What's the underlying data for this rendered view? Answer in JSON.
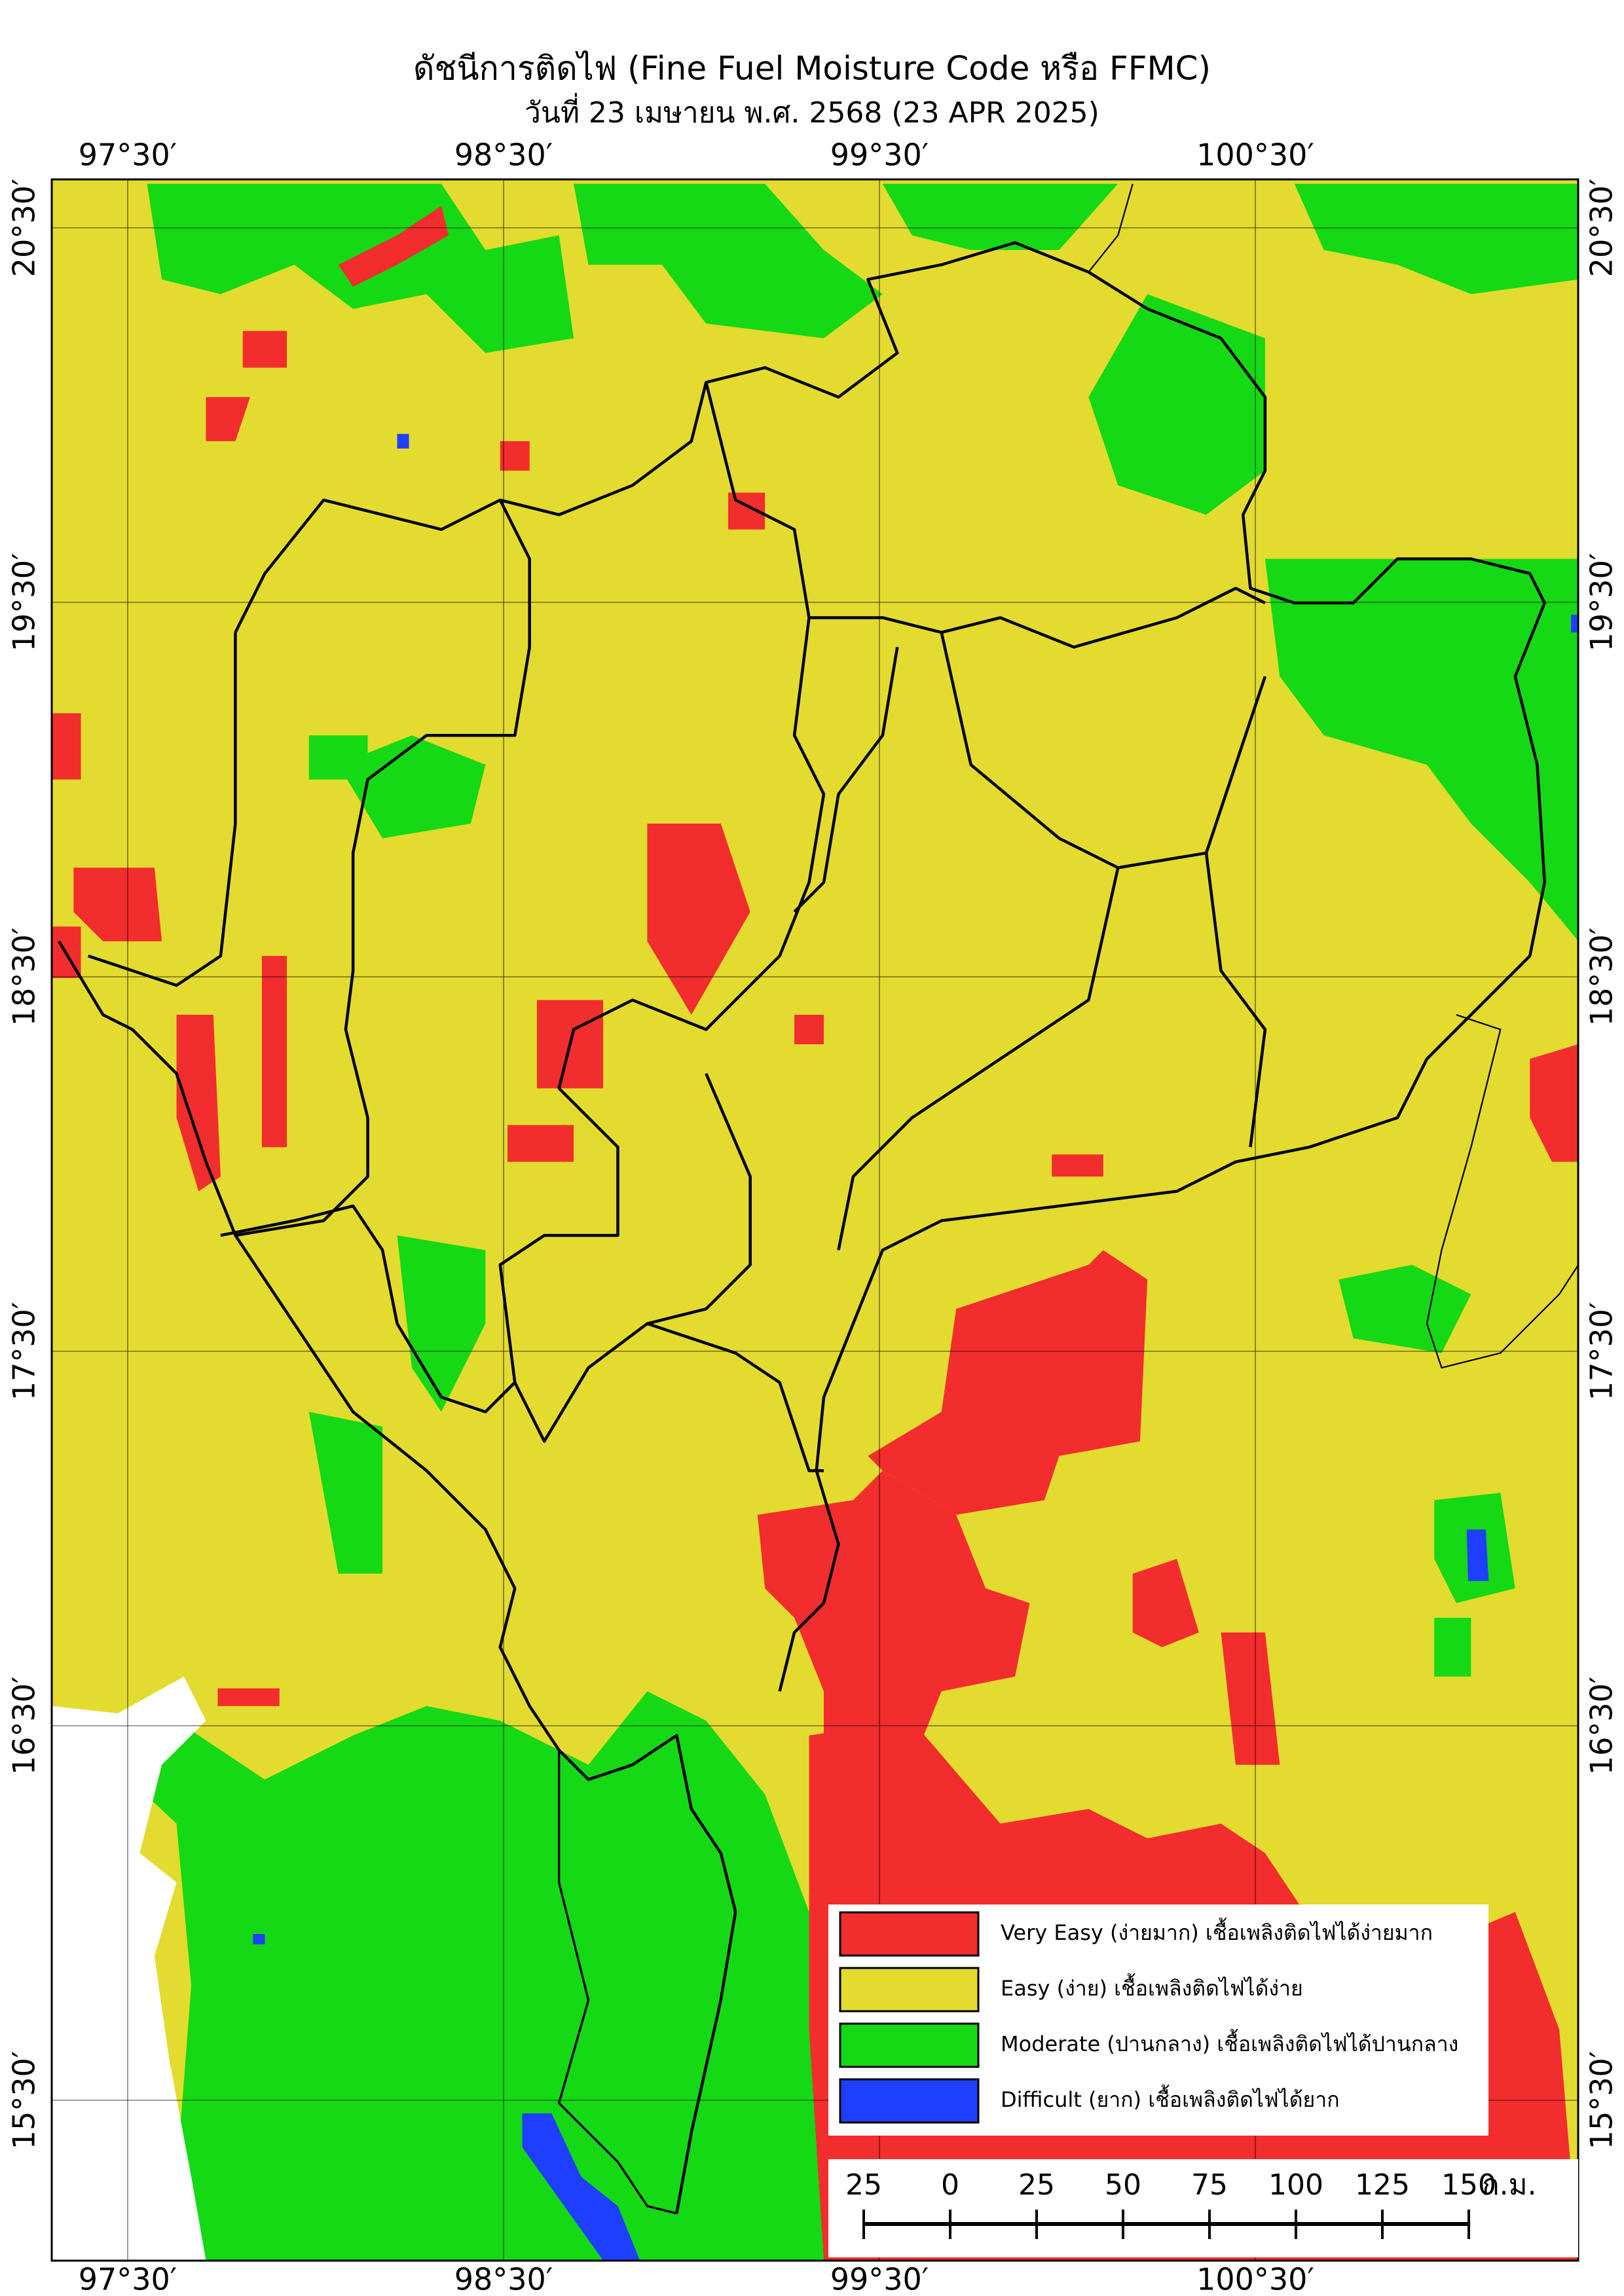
{
  "title": "ดัชนีการติดไฟ (Fine Fuel Moisture Code หรือ FFMC)",
  "subtitle": "วันที่ 23 เมษายน พ.ศ. 2568 (23 APR 2025)",
  "longitude_labels": [
    "97°30′",
    "98°30′",
    "99°30′",
    "100°30′"
  ],
  "latitude_labels": [
    "20°30′",
    "19°30′",
    "18°30′",
    "17°30′",
    "16°30′",
    "15°30′"
  ],
  "legend": [
    {
      "label": "Very Easy (ง่ายมาก) เชื้อเพลิงติดไฟได้ง่ายมาก",
      "color": "#f22d2d"
    },
    {
      "label": "Easy (ง่าย) เชื้อเพลิงติดไฟได้ง่าย",
      "color": "#e3db2f"
    },
    {
      "label": "Moderate (ปานกลาง) เชื้อเพลิงติดไฟได้ปานกลาง",
      "color": "#14d914"
    },
    {
      "label": "Difficult (ยาก) เชื้อเพลิงติดไฟได้ยาก",
      "color": "#1f3fff"
    }
  ],
  "scale_bar": {
    "labels": [
      "25",
      "0",
      "25",
      "50",
      "75",
      "100",
      "125",
      "150"
    ],
    "unit": "ก.ม."
  }
}
